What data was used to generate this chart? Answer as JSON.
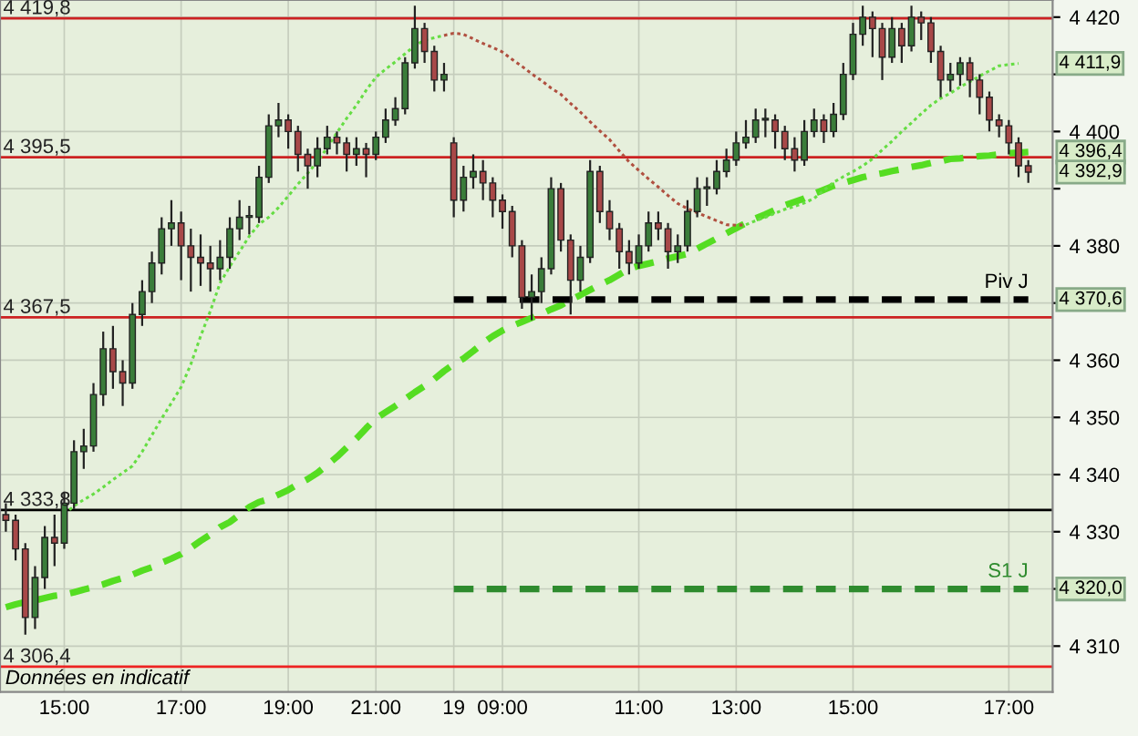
{
  "chart_data": {
    "type": "candlestick",
    "ylim": [
      4302,
      4423
    ],
    "yticks": [
      {
        "value": 4310,
        "label": "4 310"
      },
      {
        "value": 4320,
        "label": null
      },
      {
        "value": 4330,
        "label": "4 330"
      },
      {
        "value": 4340,
        "label": "4 340"
      },
      {
        "value": 4350,
        "label": "4 350"
      },
      {
        "value": 4360,
        "label": "4 360"
      },
      {
        "value": 4370,
        "label": null
      },
      {
        "value": 4380,
        "label": "4 380"
      },
      {
        "value": 4390,
        "label": null
      },
      {
        "value": 4400,
        "label": "4 400"
      },
      {
        "value": 4410,
        "label": null
      },
      {
        "value": 4420,
        "label": "4 420"
      }
    ],
    "grid": true,
    "categories": [
      null,
      null,
      null,
      null,
      null,
      null,
      "15:00",
      null,
      null,
      null,
      null,
      null,
      null,
      null,
      null,
      null,
      null,
      null,
      "17:00",
      null,
      null,
      null,
      null,
      null,
      null,
      null,
      null,
      null,
      null,
      "19:00",
      null,
      null,
      null,
      null,
      null,
      null,
      null,
      null,
      "21:00",
      null,
      null,
      null,
      null,
      null,
      null,
      null,
      "19",
      null,
      null,
      null,
      null,
      "09:00",
      null,
      null,
      null,
      null,
      null,
      null,
      null,
      null,
      null,
      null,
      null,
      null,
      null,
      "11:00",
      null,
      null,
      null,
      null,
      null,
      null,
      null,
      null,
      null,
      "13:00",
      null,
      null,
      null,
      null,
      null,
      null,
      null,
      null,
      null,
      null,
      null,
      "15:00",
      null,
      null,
      null,
      null,
      null,
      null,
      null,
      null,
      null,
      null,
      null,
      null,
      null,
      null,
      null,
      "17:00",
      null,
      null
    ],
    "ohlc": [
      [
        4333,
        4335,
        4330,
        4332
      ],
      [
        4332,
        4333,
        4325,
        4327
      ],
      [
        4327,
        4328,
        4312,
        4315
      ],
      [
        4315,
        4324,
        4313,
        4322
      ],
      [
        4322,
        4331,
        4320,
        4329
      ],
      [
        4329,
        4333,
        4324,
        4328
      ],
      [
        4328,
        4337,
        4327,
        4335
      ],
      [
        4335,
        4346,
        4334,
        4344
      ],
      [
        4344,
        4348,
        4341,
        4345
      ],
      [
        4345,
        4356,
        4344,
        4354
      ],
      [
        4354,
        4365,
        4352,
        4362
      ],
      [
        4362,
        4366,
        4355,
        4358
      ],
      [
        4358,
        4360,
        4352,
        4356
      ],
      [
        4356,
        4370,
        4355,
        4368
      ],
      [
        4368,
        4374,
        4366,
        4372
      ],
      [
        4372,
        4379,
        4370,
        4377
      ],
      [
        4377,
        4385,
        4375,
        4383
      ],
      [
        4383,
        4388,
        4380,
        4384
      ],
      [
        4384,
        4386,
        4374,
        4380
      ],
      [
        4380,
        4383,
        4372,
        4378
      ],
      [
        4378,
        4382,
        4373,
        4377
      ],
      [
        4377,
        4380,
        4372,
        4376
      ],
      [
        4376,
        4381,
        4374,
        4378
      ],
      [
        4378,
        4385,
        4376,
        4383
      ],
      [
        4383,
        4388,
        4381,
        4385
      ],
      [
        4385,
        4387,
        4382,
        4385
      ],
      [
        4385,
        4394,
        4384,
        4392
      ],
      [
        4392,
        4403,
        4391,
        4401
      ],
      [
        4401,
        4405,
        4399,
        4402
      ],
      [
        4402,
        4403,
        4397,
        4400
      ],
      [
        4400,
        4401,
        4393,
        4396
      ],
      [
        4396,
        4397,
        4390,
        4394
      ],
      [
        4394,
        4399,
        4392,
        4397
      ],
      [
        4397,
        4401,
        4396,
        4399
      ],
      [
        4399,
        4400,
        4396,
        4398
      ],
      [
        4398,
        4399,
        4393,
        4396
      ],
      [
        4396,
        4399,
        4394,
        4397
      ],
      [
        4397,
        4398,
        4392,
        4396
      ],
      [
        4396,
        4400,
        4395,
        4399
      ],
      [
        4399,
        4404,
        4398,
        4402
      ],
      [
        4402,
        4406,
        4401,
        4404
      ],
      [
        4404,
        4413,
        4403,
        4412
      ],
      [
        4412,
        4422,
        4411,
        4418
      ],
      [
        4418,
        4419,
        4412,
        4414
      ],
      [
        4414,
        4415,
        4407,
        4409
      ],
      [
        4409,
        4412,
        4407,
        4410
      ],
      [
        4398,
        4399,
        4385,
        4388
      ],
      [
        4388,
        4394,
        4386,
        4392
      ],
      [
        4392,
        4396,
        4390,
        4393
      ],
      [
        4393,
        4395,
        4388,
        4391
      ],
      [
        4391,
        4392,
        4385,
        4388
      ],
      [
        4388,
        4389,
        4383,
        4386
      ],
      [
        4386,
        4387,
        4378,
        4380
      ],
      [
        4380,
        4381,
        4369,
        4371
      ],
      [
        4371,
        4375,
        4367,
        4372
      ],
      [
        4372,
        4378,
        4370,
        4376
      ],
      [
        4376,
        4392,
        4375,
        4390
      ],
      [
        4390,
        4391,
        4379,
        4381
      ],
      [
        4381,
        4382,
        4368,
        4374
      ],
      [
        4374,
        4380,
        4372,
        4378
      ],
      [
        4378,
        4395,
        4377,
        4393
      ],
      [
        4393,
        4394,
        4384,
        4386
      ],
      [
        4386,
        4388,
        4381,
        4383
      ],
      [
        4383,
        4384,
        4376,
        4379
      ],
      [
        4379,
        4381,
        4375,
        4377
      ],
      [
        4377,
        4382,
        4376,
        4380
      ],
      [
        4380,
        4386,
        4379,
        4384
      ],
      [
        4384,
        4386,
        4381,
        4383
      ],
      [
        4383,
        4384,
        4376,
        4379
      ],
      [
        4379,
        4382,
        4377,
        4380
      ],
      [
        4380,
        4388,
        4379,
        4386
      ],
      [
        4386,
        4392,
        4385,
        4390
      ],
      [
        4390,
        4392,
        4387,
        4390
      ],
      [
        4390,
        4395,
        4389,
        4393
      ],
      [
        4393,
        4397,
        4392,
        4395
      ],
      [
        4395,
        4400,
        4394,
        4398
      ],
      [
        4398,
        4402,
        4397,
        4399
      ],
      [
        4399,
        4404,
        4398,
        4402
      ],
      [
        4402,
        4404,
        4399,
        4402
      ],
      [
        4402,
        4403,
        4397,
        4400
      ],
      [
        4400,
        4401,
        4395,
        4397
      ],
      [
        4397,
        4399,
        4393,
        4395
      ],
      [
        4395,
        4402,
        4394,
        4400
      ],
      [
        4400,
        4404,
        4399,
        4402
      ],
      [
        4402,
        4403,
        4398,
        4400
      ],
      [
        4400,
        4405,
        4399,
        4403
      ],
      [
        4403,
        4412,
        4402,
        4410
      ],
      [
        4410,
        4419,
        4409,
        4417
      ],
      [
        4417,
        4422,
        4415,
        4420
      ],
      [
        4420,
        4421,
        4413,
        4418
      ],
      [
        4418,
        4419,
        4409,
        4413
      ],
      [
        4413,
        4420,
        4412,
        4418
      ],
      [
        4418,
        4419,
        4412,
        4415
      ],
      [
        4415,
        4422,
        4414,
        4420
      ],
      [
        4420,
        4421,
        4416,
        4419
      ],
      [
        4419,
        4420,
        4412,
        4414
      ],
      [
        4414,
        4415,
        4406,
        4409
      ],
      [
        4409,
        4412,
        4407,
        4410
      ],
      [
        4410,
        4413,
        4408,
        4412
      ],
      [
        4412,
        4413,
        4406,
        4409
      ],
      [
        4409,
        4410,
        4403,
        4406
      ],
      [
        4406,
        4407,
        4400,
        4402
      ],
      [
        4402,
        4403,
        4399,
        4401
      ],
      [
        4401,
        4402,
        4396,
        4398
      ],
      [
        4398,
        4399,
        4392,
        4394
      ],
      [
        4394,
        4395,
        4391,
        4392.9
      ]
    ],
    "colors": [
      "#a84848",
      "#a84848",
      "#a84848",
      "#3a7d3a",
      "#3a7d3a",
      "#a84848",
      "#3a7d3a",
      "#3a7d3a",
      "#3a7d3a",
      "#3a7d3a",
      "#3a7d3a",
      "#a84848",
      "#a84848",
      "#3a7d3a",
      "#3a7d3a",
      "#3a7d3a",
      "#3a7d3a",
      "#3a7d3a",
      "#a84848",
      "#a84848",
      "#a84848",
      "#a84848",
      "#3a7d3a",
      "#3a7d3a",
      "#3a7d3a",
      "#3a7d3a",
      "#3a7d3a",
      "#3a7d3a",
      "#3a7d3a",
      "#a84848",
      "#a84848",
      "#a84848",
      "#3a7d3a",
      "#3a7d3a",
      "#a84848",
      "#a84848",
      "#3a7d3a",
      "#a84848",
      "#3a7d3a",
      "#3a7d3a",
      "#3a7d3a",
      "#3a7d3a",
      "#3a7d3a",
      "#a84848",
      "#a84848",
      "#3a7d3a",
      "#a84848",
      "#3a7d3a",
      "#3a7d3a",
      "#a84848",
      "#a84848",
      "#a84848",
      "#a84848",
      "#a84848",
      "#3a7d3a",
      "#3a7d3a",
      "#3a7d3a",
      "#a84848",
      "#a84848",
      "#3a7d3a",
      "#3a7d3a",
      "#a84848",
      "#a84848",
      "#a84848",
      "#a84848",
      "#3a7d3a",
      "#3a7d3a",
      "#a84848",
      "#a84848",
      "#3a7d3a",
      "#3a7d3a",
      "#3a7d3a",
      "#3a7d3a",
      "#3a7d3a",
      "#3a7d3a",
      "#3a7d3a",
      "#3a7d3a",
      "#3a7d3a",
      "#3a7d3a",
      "#a84848",
      "#a84848",
      "#a84848",
      "#3a7d3a",
      "#3a7d3a",
      "#a84848",
      "#3a7d3a",
      "#3a7d3a",
      "#3a7d3a",
      "#3a7d3a",
      "#a84848",
      "#a84848",
      "#3a7d3a",
      "#a84848",
      "#3a7d3a",
      "#a84848",
      "#a84848",
      "#a84848",
      "#3a7d3a",
      "#3a7d3a",
      "#a84848",
      "#a84848",
      "#a84848",
      "#a84848",
      "#a84848",
      "#a84848",
      "#a84848"
    ],
    "series": [
      {
        "type": "line",
        "color": "#66dd44",
        "line_style": "dotted",
        "values": [
          null,
          null,
          null,
          null,
          null,
          null,
          4333.1,
          4334.5,
          4335.6,
          4336.6,
          4337.8,
          4339.1,
          4340.3,
          4341.5,
          4344.0,
          4346.9,
          4349.8,
          4352.5,
          4355.3,
          4359.3,
          4364.2,
          4368.6,
          4373.5,
          4376.4,
          4379.0,
          4381.7,
          4383.8,
          4385.0,
          4386.7,
          4388.7,
          4390.8,
          4392.7,
          4394.7,
          4397.2,
          4399.8,
          4402.3,
          4404.6,
          4407.2,
          4409.5,
          4410.9,
          4412.2,
          4413.6,
          4415.0,
          4416.0,
          4416.4,
          4416.8,
          null,
          null,
          null,
          null,
          null,
          null,
          null,
          null,
          null,
          null,
          null,
          null,
          null,
          null,
          null,
          null,
          null,
          null,
          null,
          null,
          null,
          null,
          null,
          null,
          null,
          null,
          null,
          null,
          null,
          null,
          4383.7,
          4384.4,
          4385.0,
          4385.7,
          4386.4,
          4386.9,
          4387.5,
          4388.3,
          4389.7,
          4391.1,
          4392.1,
          4393.0,
          4394.0,
          4395.2,
          4396.8,
          4398.3,
          4400.0,
          4401.5,
          4403.1,
          4404.6,
          4405.8,
          4406.7,
          4407.8,
          4408.7,
          4409.7,
          4410.6,
          4411.5,
          4411.7,
          4411.9,
          null
        ]
      },
      {
        "type": "line",
        "color": "#b05040",
        "line_style": "dotted",
        "values": [
          null,
          null,
          null,
          null,
          null,
          null,
          null,
          null,
          null,
          null,
          null,
          null,
          null,
          null,
          null,
          null,
          null,
          null,
          null,
          null,
          null,
          null,
          null,
          null,
          null,
          null,
          null,
          null,
          null,
          null,
          null,
          null,
          null,
          null,
          null,
          null,
          null,
          null,
          null,
          null,
          null,
          null,
          null,
          null,
          null,
          4416.8,
          4417.2,
          4417.0,
          4416.2,
          4415.4,
          4414.7,
          4413.9,
          4412.6,
          4411.4,
          4410.1,
          4408.9,
          4407.6,
          4406.5,
          4404.9,
          4403.4,
          4401.7,
          4400.1,
          4398.6,
          4396.6,
          4394.7,
          4393.2,
          4391.7,
          4390.3,
          4388.8,
          4387.4,
          4386.5,
          4385.8,
          4385.1,
          4384.4,
          4383.7,
          4383.6,
          4383.7,
          null,
          null,
          null,
          null,
          null,
          null,
          null,
          null,
          null,
          null,
          null,
          null,
          null,
          null,
          null,
          null,
          null,
          null,
          null,
          null,
          null,
          null,
          null,
          null,
          null,
          null,
          null,
          null,
          null
        ]
      },
      {
        "type": "line",
        "color": "#55dd22",
        "line_style": "dashed",
        "values": [
          4316.8,
          4317.3,
          4317.7,
          4318.0,
          4318.4,
          4318.8,
          4319.0,
          4319.4,
          4319.9,
          4320.3,
          4320.8,
          4321.4,
          4321.9,
          4322.5,
          4323.2,
          4323.8,
          4324.6,
          4325.3,
          4326.1,
          4327.2,
          4328.4,
          4329.5,
          4330.8,
          4331.7,
          4333.0,
          4334.3,
          4335.2,
          4335.7,
          4336.5,
          4337.3,
          4338.3,
          4339.2,
          4340.3,
          4341.7,
          4343.1,
          4344.7,
          4346.3,
          4348.1,
          4349.8,
          4350.9,
          4352.0,
          4353.2,
          4354.4,
          4355.5,
          4356.7,
          4358.1,
          4359.3,
          4360.3,
          4361.6,
          4363.0,
          4364.2,
          4365.2,
          4366.0,
          4366.7,
          4367.4,
          4368.1,
          4368.9,
          4369.6,
          4370.6,
          4371.4,
          4372.3,
          4373.2,
          4374.0,
          4375.0,
          4376.0,
          4376.5,
          4376.9,
          4377.3,
          4377.8,
          4378.2,
          4378.6,
          4379.5,
          4380.4,
          4381.3,
          4382.2,
          4383.1,
          4384.0,
          4384.8,
          4385.5,
          4386.3,
          4387.1,
          4387.7,
          4388.3,
          4389.1,
          4389.8,
          4390.5,
          4391.0,
          4391.5,
          4392.0,
          4392.4,
          4392.7,
          4393.1,
          4393.4,
          4393.8,
          4394.1,
          4394.5,
          4394.8,
          4395.2,
          4395.3,
          4395.5,
          4395.7,
          4395.8,
          4396.0,
          4396.2,
          4396.3,
          4396.4
        ]
      },
      {
        "type": "line",
        "name": "Piv J",
        "color": "#000000",
        "line_style": "dashed",
        "values": [
          null,
          null,
          null,
          null,
          null,
          null,
          null,
          null,
          null,
          null,
          null,
          null,
          null,
          null,
          null,
          null,
          null,
          null,
          null,
          null,
          null,
          null,
          null,
          null,
          null,
          null,
          null,
          null,
          null,
          null,
          null,
          null,
          null,
          null,
          null,
          null,
          null,
          null,
          null,
          null,
          null,
          null,
          null,
          null,
          null,
          null,
          4370.6,
          4370.6,
          4370.6,
          4370.6,
          4370.6,
          4370.6,
          4370.6,
          4370.6,
          4370.6,
          4370.6,
          4370.6,
          4370.6,
          4370.6,
          4370.6,
          4370.6,
          4370.6,
          4370.6,
          4370.6,
          4370.6,
          4370.6,
          4370.6,
          4370.6,
          4370.6,
          4370.6,
          4370.6,
          4370.6,
          4370.6,
          4370.6,
          4370.6,
          4370.6,
          4370.6,
          4370.6,
          4370.6,
          4370.6,
          4370.6,
          4370.6,
          4370.6,
          4370.6,
          4370.6,
          4370.6,
          4370.6,
          4370.6,
          4370.6,
          4370.6,
          4370.6,
          4370.6,
          4370.6,
          4370.6,
          4370.6,
          4370.6,
          4370.6,
          4370.6,
          4370.6,
          4370.6,
          4370.6,
          4370.6,
          4370.6,
          4370.6,
          4370.6,
          4370.6
        ]
      },
      {
        "type": "line",
        "name": "S1 J",
        "color": "#2e8b2e",
        "line_style": "dashed",
        "values": [
          null,
          null,
          null,
          null,
          null,
          null,
          null,
          null,
          null,
          null,
          null,
          null,
          null,
          null,
          null,
          null,
          null,
          null,
          null,
          null,
          null,
          null,
          null,
          null,
          null,
          null,
          null,
          null,
          null,
          null,
          null,
          null,
          null,
          null,
          null,
          null,
          null,
          null,
          null,
          null,
          null,
          null,
          null,
          null,
          null,
          null,
          4320.0,
          4320.0,
          4320.0,
          4320.0,
          4320.0,
          4320.0,
          4320.0,
          4320.0,
          4320.0,
          4320.0,
          4320.0,
          4320.0,
          4320.0,
          4320.0,
          4320.0,
          4320.0,
          4320.0,
          4320.0,
          4320.0,
          4320.0,
          4320.0,
          4320.0,
          4320.0,
          4320.0,
          4320.0,
          4320.0,
          4320.0,
          4320.0,
          4320.0,
          4320.0,
          4320.0,
          4320.0,
          4320.0,
          4320.0,
          4320.0,
          4320.0,
          4320.0,
          4320.0,
          4320.0,
          4320.0,
          4320.0,
          4320.0,
          4320.0,
          4320.0,
          4320.0,
          4320.0,
          4320.0,
          4320.0,
          4320.0,
          4320.0,
          4320.0,
          4320.0,
          4320.0,
          4320.0,
          4320.0,
          4320.0,
          4320.0,
          4320.0,
          4320.0,
          4320.0
        ]
      }
    ],
    "ref_lines": [
      {
        "axis": "y",
        "value": 4419.8,
        "label": "4 419,8",
        "color": "#cc2222"
      },
      {
        "axis": "y",
        "value": 4395.5,
        "label": "4 395,5",
        "color": "#cc2222"
      },
      {
        "axis": "y",
        "value": 4367.5,
        "label": "4 367,5",
        "color": "#cc2222"
      },
      {
        "axis": "y",
        "value": 4333.8,
        "label": "4 333,8",
        "color": "#000000"
      },
      {
        "axis": "y",
        "value": 4306.4,
        "label": "4 306,4",
        "color": "#ee2222"
      }
    ],
    "annotations": [
      "Données en indicatif",
      {
        "text": "4 411,9",
        "y": 4411.9
      },
      {
        "text": "4 396,4",
        "y": 4396.4
      },
      {
        "text": "4 392,9",
        "y": 4392.9
      },
      {
        "text": "4 370,6",
        "y": 4370.6
      },
      {
        "text": "4 320,0",
        "y": 4320.0
      }
    ]
  }
}
